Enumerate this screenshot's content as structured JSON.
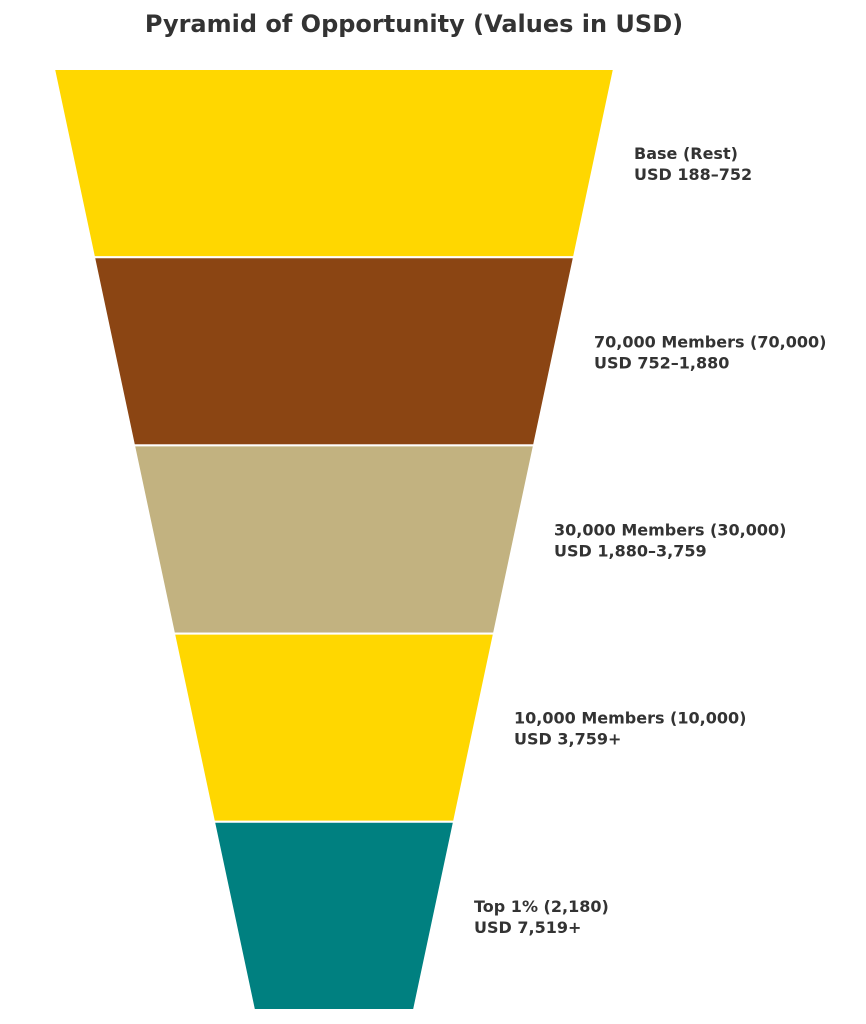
{
  "chart_data": {
    "type": "funnel",
    "title": "Pyramid of Opportunity (Values in USD)",
    "orientation": "inverted",
    "tiers": [
      {
        "name": "Base (Rest)",
        "range": "USD 188–752",
        "color": "#FFD700"
      },
      {
        "name": "70,000 Members (70,000)",
        "range": "USD 752–1,880",
        "color": "#8B4513"
      },
      {
        "name": "30,000 Members (30,000)",
        "range": "USD 1,880–3,759",
        "color": "#C2B280"
      },
      {
        "name": "10,000 Members (10,000)",
        "range": "USD 3,759+",
        "color": "#FFD700"
      },
      {
        "name": "Top 1% (2,180)",
        "range": "USD 7,519+",
        "color": "#008080"
      }
    ]
  }
}
